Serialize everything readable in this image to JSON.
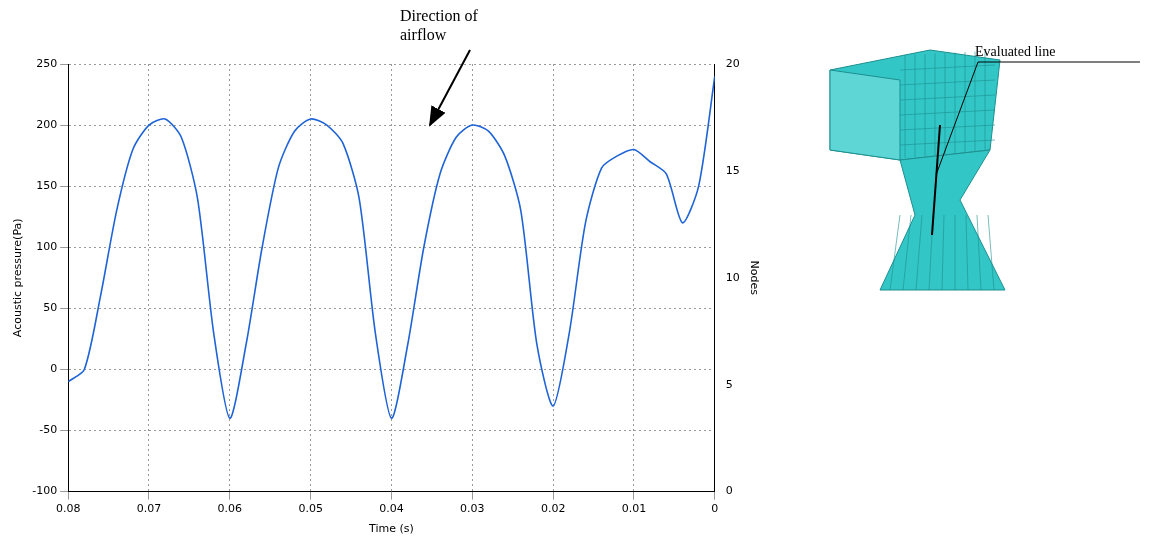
{
  "chart_data": {
    "type": "line",
    "x_label": "Time (s)",
    "y_label": "Acoustic pressure(Pa)",
    "z_label": "Nodes",
    "x": [
      0,
      0.002,
      0.004,
      0.006,
      0.008,
      0.01,
      0.012,
      0.014,
      0.016,
      0.018,
      0.02,
      0.022,
      0.024,
      0.026,
      0.028,
      0.03,
      0.032,
      0.034,
      0.036,
      0.038,
      0.04,
      0.042,
      0.044,
      0.046,
      0.048,
      0.05,
      0.052,
      0.054,
      0.056,
      0.058,
      0.06,
      0.062,
      0.064,
      0.066,
      0.068,
      0.07,
      0.072,
      0.074,
      0.076,
      0.078,
      0.08
    ],
    "values": [
      240,
      150,
      120,
      160,
      170,
      180,
      175,
      165,
      120,
      30,
      -30,
      20,
      130,
      175,
      195,
      200,
      190,
      160,
      100,
      20,
      -40,
      30,
      140,
      185,
      200,
      205,
      195,
      165,
      100,
      20,
      -40,
      30,
      140,
      190,
      205,
      200,
      180,
      130,
      60,
      0,
      -10
    ],
    "color": "#1f64d6",
    "xlim": [
      0,
      0.08
    ],
    "xticks": [
      0,
      0.01,
      0.02,
      0.03,
      0.04,
      0.05,
      0.06,
      0.07,
      0.08
    ],
    "ylim": [
      -100,
      250
    ],
    "yticks": [
      -100,
      -50,
      0,
      50,
      100,
      150,
      200,
      250
    ],
    "zlim": [
      0,
      20
    ],
    "zticks": [
      0,
      5,
      10,
      15,
      20
    ],
    "grid": true,
    "annotations": [
      {
        "text": "Direction of airflow"
      }
    ],
    "inset": {
      "label": "Evaluated line"
    }
  }
}
